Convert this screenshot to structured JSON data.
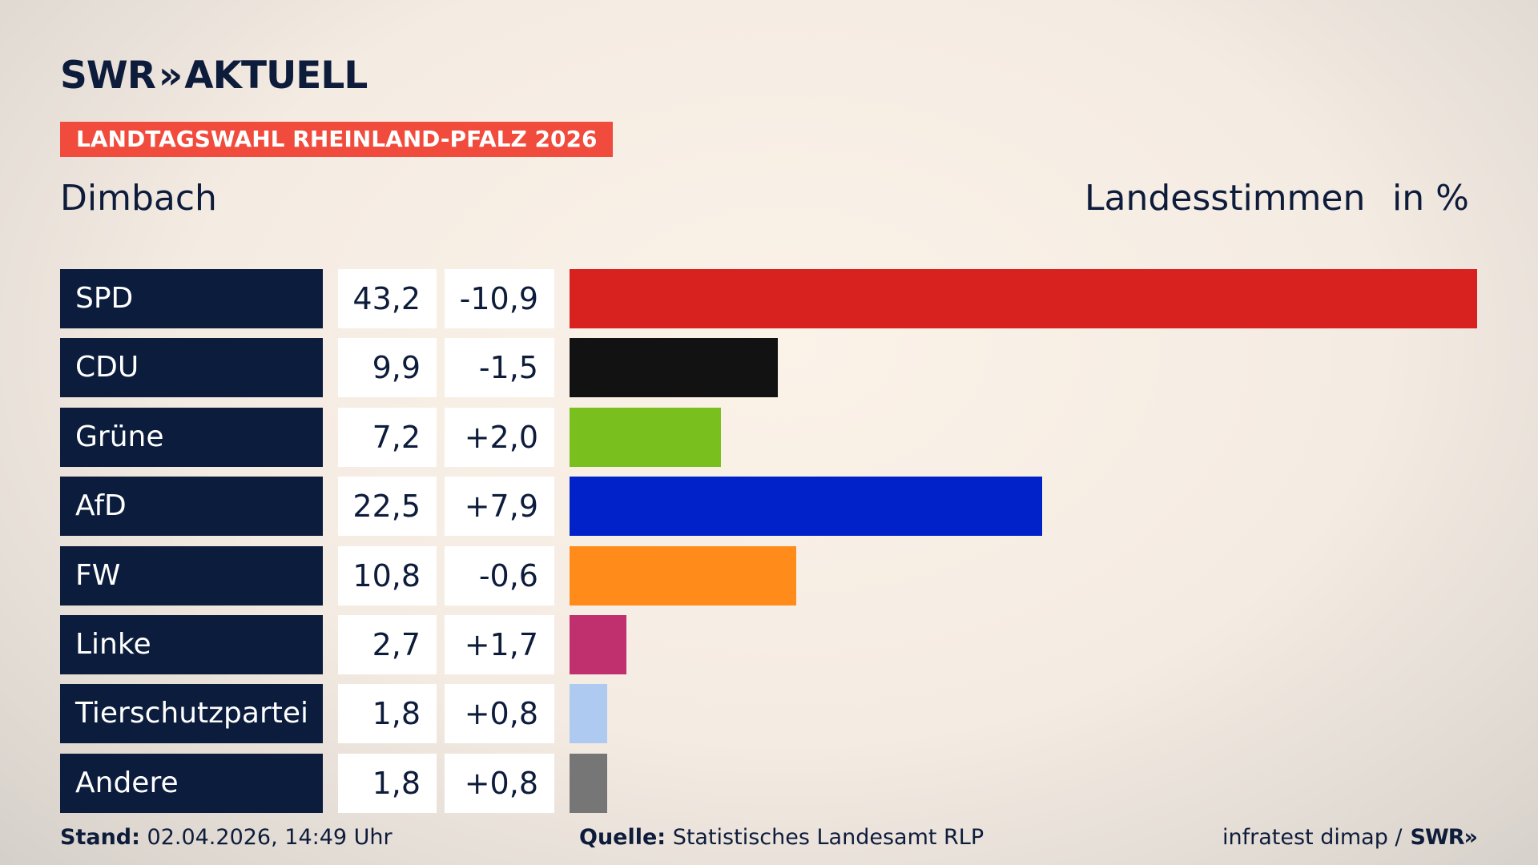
{
  "header": {
    "logo_left": "SWR",
    "logo_chevrons": "»",
    "logo_right": "AKTUELL",
    "election": "LANDTAGSWAHL RHEINLAND-PFALZ 2026",
    "region": "Dimbach",
    "measure": "Landesstimmen",
    "unit": "in %"
  },
  "chart_data": {
    "type": "bar",
    "orientation": "horizontal",
    "title": "LANDTAGSWAHL RHEINLAND-PFALZ 2026",
    "subtitle": "Dimbach",
    "xlabel": "Landesstimmen",
    "ylabel": "",
    "unit": "in %",
    "xlim": [
      0,
      43.2
    ],
    "grid": false,
    "categories": [
      "SPD",
      "CDU",
      "Grüne",
      "AfD",
      "FW",
      "Linke",
      "Tierschutzpartei",
      "Andere"
    ],
    "values": [
      43.2,
      9.9,
      7.2,
      22.5,
      10.8,
      2.7,
      1.8,
      1.8
    ],
    "value_labels": [
      "43,2",
      "9,9",
      "7,2",
      "22,5",
      "10,8",
      "2,7",
      "1,8",
      "1,8"
    ],
    "change_labels": [
      "-10,9",
      "-1,5",
      "+2,0",
      "+7,9",
      "-0,6",
      "+1,7",
      "+0,8",
      "+0,8"
    ],
    "changes": [
      -10.9,
      -1.5,
      2.0,
      7.9,
      -0.6,
      1.7,
      0.8,
      0.8
    ],
    "colors": [
      "#d82220",
      "#121212",
      "#79bf1e",
      "#0022c8",
      "#ff8c1a",
      "#c0306e",
      "#aecaf0",
      "#767676"
    ]
  },
  "footer": {
    "stand_label": "Stand:",
    "stand_value": "02.04.2026, 14:49 Uhr",
    "source_label": "Quelle:",
    "source_value": "Statistisches Landesamt RLP",
    "credit": "infratest dimap /",
    "credit_logo": "SWR»"
  }
}
